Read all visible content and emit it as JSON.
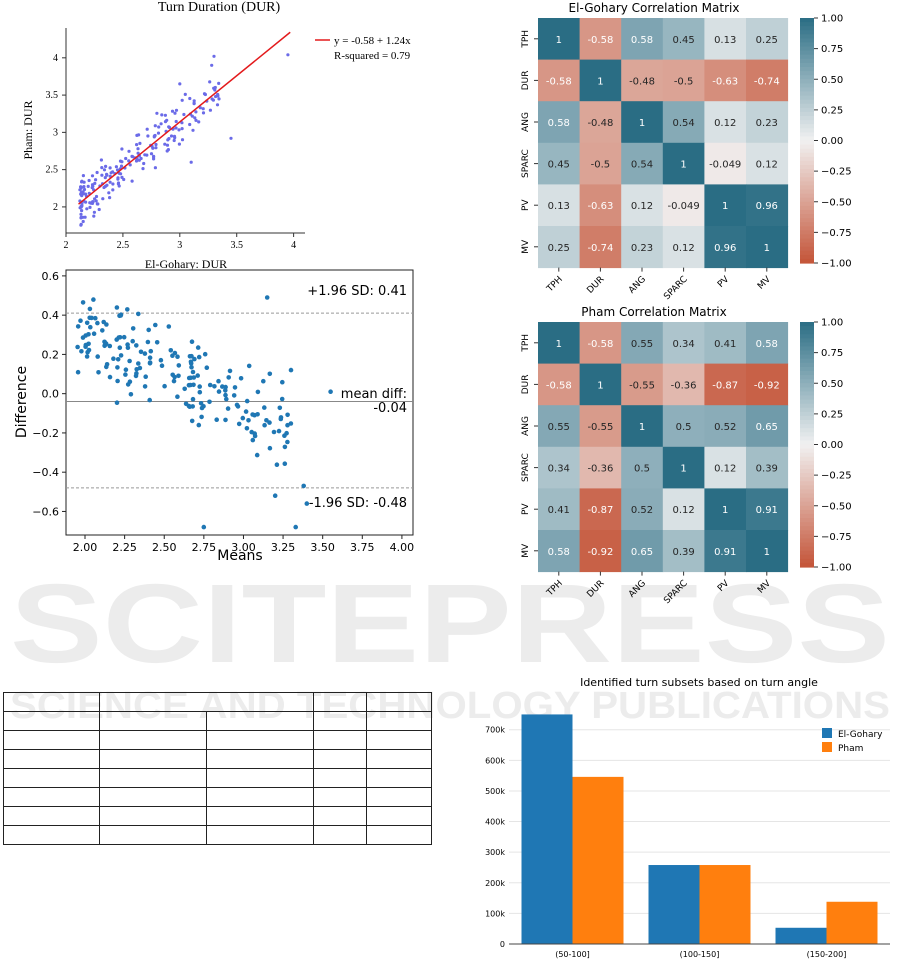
{
  "watermark": {
    "main": "SCITEPRESS",
    "sub": "SCIENCE AND TECHNOLOGY PUBLICATIONS"
  },
  "chart_data": [
    {
      "id": "scatter",
      "type": "scatter",
      "title": "Turn Duration (DUR)",
      "xlabel": "El-Gohary: DUR",
      "ylabel": "Pham: DUR",
      "xlim": [
        2.0,
        4.1
      ],
      "ylim": [
        1.65,
        4.4
      ],
      "xticks": [
        "2",
        "2.5",
        "3",
        "3.5",
        "4"
      ],
      "yticks": [
        "2",
        "2.5",
        "3",
        "3.5",
        "4"
      ],
      "legend": [
        "y = -0.58 + 1.24x",
        "R-squared = 0.79"
      ],
      "fit": {
        "intercept": -0.58,
        "slope": 1.24,
        "x_range": [
          2.11,
          3.97
        ]
      },
      "point_color": "#6b6be8",
      "line_color": "#e31a1c"
    },
    {
      "id": "bland-altman",
      "type": "scatter",
      "xlabel": "Means",
      "ylabel": "Difference",
      "xlim": [
        1.88,
        4.07
      ],
      "ylim": [
        -0.72,
        0.63
      ],
      "xticks": [
        "2.00",
        "2.25",
        "2.50",
        "2.75",
        "3.00",
        "3.25",
        "3.50",
        "3.75",
        "4.00"
      ],
      "yticks": [
        "0.6",
        "0.4",
        "0.2",
        "0.0",
        "−0.2",
        "−0.4",
        "−0.6"
      ],
      "upper_loa": 0.41,
      "mean_diff": -0.04,
      "lower_loa": -0.48,
      "upper_label": "+1.96 SD: 0.41",
      "mean_label1": "mean diff:",
      "mean_label2": "-0.04",
      "lower_label": "-1.96 SD: -0.48",
      "point_color": "#1f77b4"
    },
    {
      "id": "corr-el-gohary",
      "type": "heatmap",
      "title": "El-Gohary Correlation Matrix",
      "labels": [
        "TPH",
        "DUR",
        "ANG",
        "SPARC",
        "PV",
        "MV"
      ],
      "values": [
        [
          1,
          -0.58,
          0.58,
          0.45,
          0.13,
          0.25
        ],
        [
          -0.58,
          1,
          -0.48,
          -0.5,
          -0.63,
          -0.74
        ],
        [
          0.58,
          -0.48,
          1,
          0.54,
          0.12,
          0.23
        ],
        [
          0.45,
          -0.5,
          0.54,
          1,
          -0.049,
          0.12
        ],
        [
          0.13,
          -0.63,
          0.12,
          -0.049,
          1,
          0.96
        ],
        [
          0.25,
          -0.74,
          0.23,
          0.12,
          0.96,
          1
        ]
      ],
      "display": [
        [
          "1",
          "-0.58",
          "0.58",
          "0.45",
          "0.13",
          "0.25"
        ],
        [
          "-0.58",
          "1",
          "-0.48",
          "-0.5",
          "-0.63",
          "-0.74"
        ],
        [
          "0.58",
          "-0.48",
          "1",
          "0.54",
          "0.12",
          "0.23"
        ],
        [
          "0.45",
          "-0.5",
          "0.54",
          "1",
          "-0.049",
          "0.12"
        ],
        [
          "0.13",
          "-0.63",
          "0.12",
          "-0.049",
          "1",
          "0.96"
        ],
        [
          "0.25",
          "-0.74",
          "0.23",
          "0.12",
          "0.96",
          "1"
        ]
      ],
      "colorbar_ticks": [
        "1.00",
        "0.75",
        "0.50",
        "0.25",
        "0.00",
        "−0.25",
        "−0.50",
        "−0.75",
        "−1.00"
      ],
      "vmin": -1,
      "vmax": 1
    },
    {
      "id": "corr-pham",
      "type": "heatmap",
      "title": "Pham Correlation Matrix",
      "labels": [
        "TPH",
        "DUR",
        "ANG",
        "SPARC",
        "PV",
        "MV"
      ],
      "values": [
        [
          1,
          -0.58,
          0.55,
          0.34,
          0.41,
          0.58
        ],
        [
          -0.58,
          1,
          -0.55,
          -0.36,
          -0.87,
          -0.92
        ],
        [
          0.55,
          -0.55,
          1,
          0.5,
          0.52,
          0.65
        ],
        [
          0.34,
          -0.36,
          0.5,
          1,
          0.12,
          0.39
        ],
        [
          0.41,
          -0.87,
          0.52,
          0.12,
          1,
          0.91
        ],
        [
          0.58,
          -0.92,
          0.65,
          0.39,
          0.91,
          1
        ]
      ],
      "display": [
        [
          "1",
          "-0.58",
          "0.55",
          "0.34",
          "0.41",
          "0.58"
        ],
        [
          "-0.58",
          "1",
          "-0.55",
          "-0.36",
          "-0.87",
          "-0.92"
        ],
        [
          "0.55",
          "-0.55",
          "1",
          "0.5",
          "0.52",
          "0.65"
        ],
        [
          "0.34",
          "-0.36",
          "0.5",
          "1",
          "0.12",
          "0.39"
        ],
        [
          "0.41",
          "-0.87",
          "0.52",
          "0.12",
          "1",
          "0.91"
        ],
        [
          "0.58",
          "-0.92",
          "0.65",
          "0.39",
          "0.91",
          "1"
        ]
      ],
      "colorbar_ticks": [
        "1.00",
        "0.75",
        "0.50",
        "0.25",
        "0.00",
        "−0.25",
        "−0.50",
        "−0.75",
        "−1.00"
      ],
      "vmin": -1,
      "vmax": 1
    },
    {
      "id": "turn-subsets",
      "type": "bar",
      "title": "Identified turn subsets based on turn angle",
      "categories": [
        "(50-100]",
        "(100-150]",
        "(150-200]"
      ],
      "series": [
        {
          "name": "El-Gohary",
          "values": [
            750000,
            258000,
            53000
          ],
          "color": "#1f77b4"
        },
        {
          "name": "Pham",
          "values": [
            546000,
            258000,
            138000
          ],
          "color": "#ff7f0e"
        }
      ],
      "ylim": [
        0,
        820000
      ],
      "yticks": [
        "0",
        "100k",
        "200k",
        "300k",
        "400k",
        "500k",
        "600k",
        "700k"
      ],
      "legend_position": "top-right"
    }
  ]
}
